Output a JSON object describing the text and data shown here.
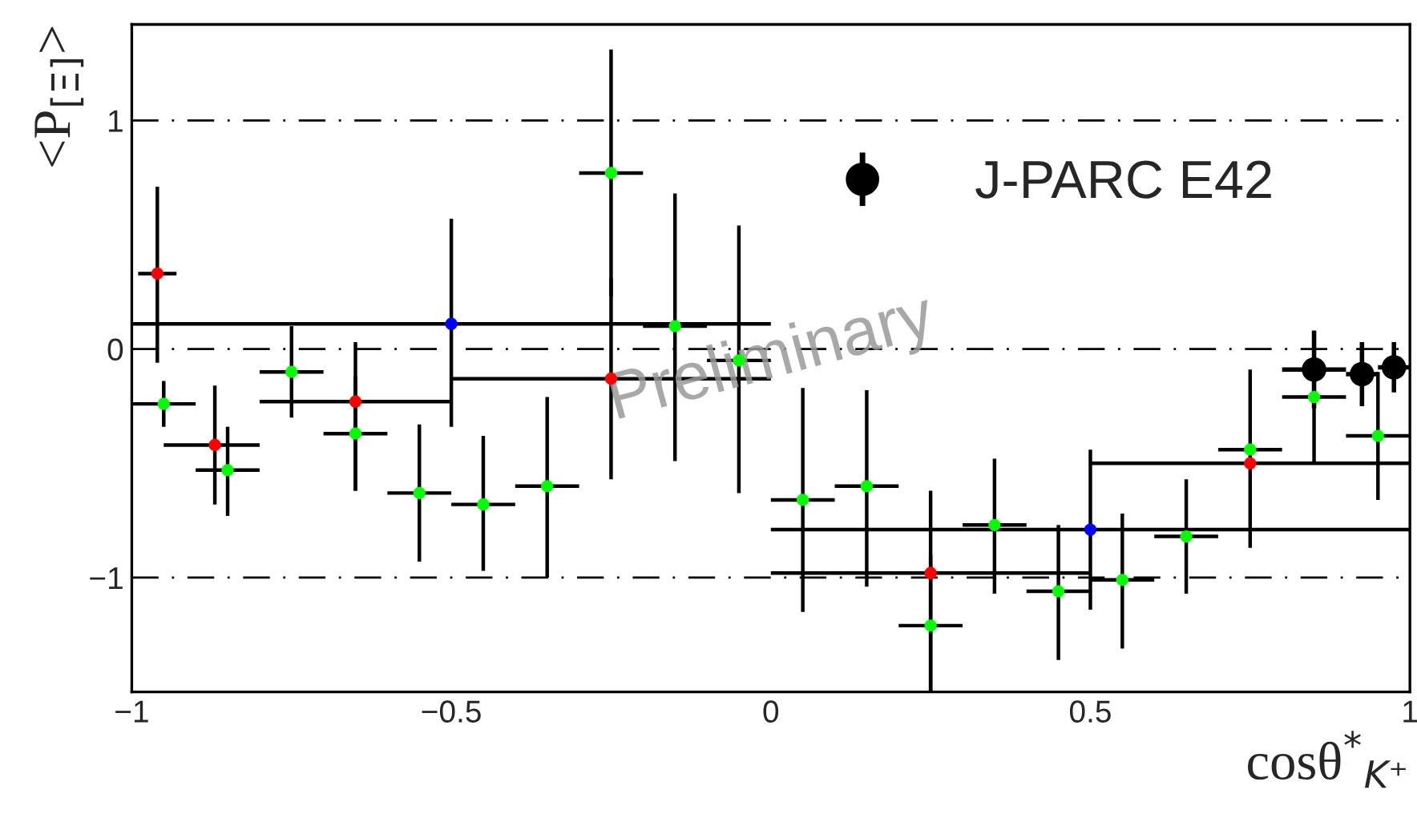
{
  "chart_data": {
    "type": "scatter",
    "xlabel": "cosθ$^{*}$$_{K⁺}$",
    "ylabel": "<P$_{[Ξ]}$>",
    "xlim": [
      -1,
      1
    ],
    "ylim": [
      -1.5,
      1.42
    ],
    "xticks": [
      {
        "value": -1,
        "label": "−1"
      },
      {
        "value": -0.5,
        "label": "−0.5"
      },
      0,
      0.5,
      1
    ],
    "yticks": [
      {
        "value": -1,
        "label": "−1"
      },
      0,
      1
    ],
    "grid": false,
    "legend": "top right",
    "marker": "circle",
    "annotations": [
      "Preliminary"
    ],
    "ref_lines": [
      {
        "axis": "y",
        "value": 1,
        "color": "#000000",
        "line_style": "dashdot"
      },
      {
        "axis": "y",
        "value": 0,
        "color": "#000000",
        "line_style": "dashdot"
      },
      {
        "axis": "y",
        "value": -1,
        "color": "#000000",
        "line_style": "dashdot"
      }
    ],
    "series": [
      {
        "color": "#00ff00",
        "x": [
          -0.95,
          -0.85,
          -0.75,
          -0.65,
          -0.55,
          -0.45,
          -0.35,
          -0.25,
          -0.15,
          -0.05,
          0.05,
          0.15,
          0.25,
          0.35,
          0.45,
          0.55,
          0.65,
          0.75,
          0.85,
          0.95
        ],
        "values": [
          -0.24,
          -0.53,
          -0.1,
          -0.37,
          -0.63,
          -0.68,
          -0.6,
          0.77,
          0.1,
          -0.05,
          -0.66,
          -0.6,
          -1.21,
          -0.77,
          -1.06,
          -1.01,
          -0.82,
          -0.44,
          -0.21,
          -0.38
        ],
        "errors": [
          [
            -0.34,
            -0.14
          ],
          [
            -0.73,
            -0.34
          ],
          [
            -0.3,
            0.1
          ],
          [
            -0.62,
            -0.12
          ],
          [
            -0.93,
            -0.33
          ],
          [
            -0.97,
            -0.38
          ],
          [
            -1.0,
            -0.21
          ],
          [
            0.23,
            1.31
          ],
          [
            -0.49,
            0.68
          ],
          [
            -0.63,
            0.54
          ],
          [
            -1.15,
            -0.17
          ],
          [
            -1.04,
            -0.18
          ],
          [
            -1.5,
            -0.9
          ],
          [
            -1.07,
            -0.48
          ],
          [
            -1.36,
            -0.77
          ],
          [
            -1.31,
            -0.72
          ],
          [
            -1.07,
            -0.57
          ],
          [
            -0.87,
            -0.09
          ],
          [
            -0.5,
            0.08
          ],
          [
            -0.66,
            -0.1
          ]
        ],
        "xerrors": [
          0.05,
          0.05,
          0.05,
          0.05,
          0.05,
          0.05,
          0.05,
          0.05,
          0.05,
          0.05,
          0.05,
          0.05,
          0.05,
          0.05,
          0.05,
          0.05,
          0.05,
          0.05,
          0.05,
          0.05
        ]
      },
      {
        "color": "#ff0000",
        "x": [
          -0.96,
          -0.87,
          -0.65,
          -0.25,
          0.25,
          0.75
        ],
        "values": [
          0.33,
          -0.42,
          -0.23,
          -0.13,
          -0.98,
          -0.5
        ],
        "errors": [
          [
            -0.06,
            0.71
          ],
          [
            -0.68,
            -0.16
          ],
          [
            -0.62,
            0.03
          ],
          [
            -0.57,
            0.31
          ],
          [
            -1.5,
            -0.62
          ],
          null
        ],
        "xerrors": [
          [
            -0.99,
            -0.93
          ],
          [
            -0.95,
            -0.8
          ],
          [
            -0.8,
            -0.5
          ],
          [
            -0.5,
            0
          ],
          [
            0,
            0.5
          ],
          [
            0.5,
            1
          ]
        ]
      },
      {
        "color": "#0000ff",
        "x": [
          -0.5,
          0.5
        ],
        "values": [
          0.11,
          -0.79
        ],
        "errors": [
          [
            -0.34,
            0.57
          ],
          [
            -1.14,
            -0.44
          ]
        ],
        "xerrors": [
          [
            -1,
            0
          ],
          [
            0,
            1
          ]
        ]
      },
      {
        "name": "J-PARC E42",
        "color": "#000000",
        "x": [
          0.85,
          0.925,
          0.975
        ],
        "values": [
          -0.09,
          -0.11,
          -0.08
        ],
        "errors": [
          0.17,
          0.14,
          0.11
        ],
        "xerrors": [
          0.05,
          0.025,
          0.025
        ]
      }
    ]
  }
}
